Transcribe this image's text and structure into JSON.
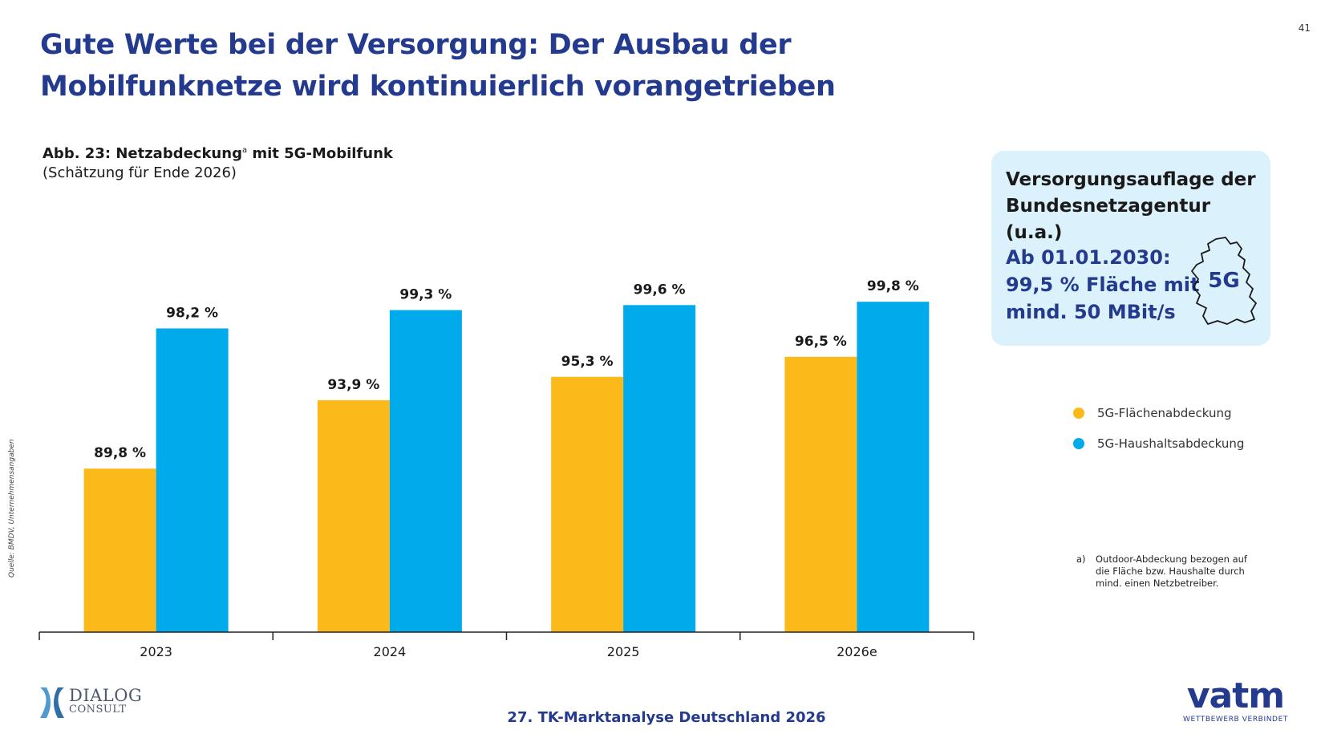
{
  "page_number": "41",
  "title": "Gute Werte bei der Versorgung: Der Ausbau der Mobilfunknetze wird kontinuierlich vorangetrieben",
  "caption": {
    "title": "Abb. 23: Netzabdeckung",
    "superscript": "a",
    "title_suffix": " mit 5G-Mobilfunk",
    "subtitle": "(Schätzung für Ende 2026)"
  },
  "source_note": "Quelle: BMDV, Unternehmensangaben",
  "chart_data": {
    "type": "bar",
    "categories": [
      "2023",
      "2024",
      "2025",
      "2026e"
    ],
    "series": [
      {
        "name": "5G-Flächenabdeckung",
        "color": "#fbb91a",
        "values": [
          89.8,
          93.9,
          95.3,
          96.5
        ],
        "labels": [
          "89,8 %",
          "93,9 %",
          "95,3 %",
          "96,5 %"
        ]
      },
      {
        "name": "5G-Haushaltsabdeckung",
        "color": "#00aaeb",
        "values": [
          98.2,
          99.3,
          99.6,
          99.8
        ],
        "labels": [
          "98,2 %",
          "99,3 %",
          "99,6 %",
          "99,8 %"
        ]
      }
    ],
    "ylim": [
      80,
      100
    ],
    "grid": false,
    "legend_position": "right"
  },
  "info_box": {
    "title": "Versorgungsauflage der Bundesnetzagentur (u.a.)",
    "body_lines": [
      "Ab 01.01.2030:",
      "99,5 % Fläche mit",
      "mind. 50 MBit/s"
    ],
    "map_label": "5G",
    "map_icon": "germany-map-icon"
  },
  "footnote": {
    "mark": "a)",
    "text": "Outdoor-Abdeckung bezogen auf die Fläche bzw. Haushalte durch mind. einen Netzbetreiber."
  },
  "footer": {
    "title": "27. TK-Marktanalyse Deutschland 2026",
    "dialog_logo_line1": "DIALOG",
    "dialog_logo_line2": "CONSULT",
    "vatm_logo": "vatm",
    "vatm_tagline": "WETTBEWERB VERBINDET"
  }
}
